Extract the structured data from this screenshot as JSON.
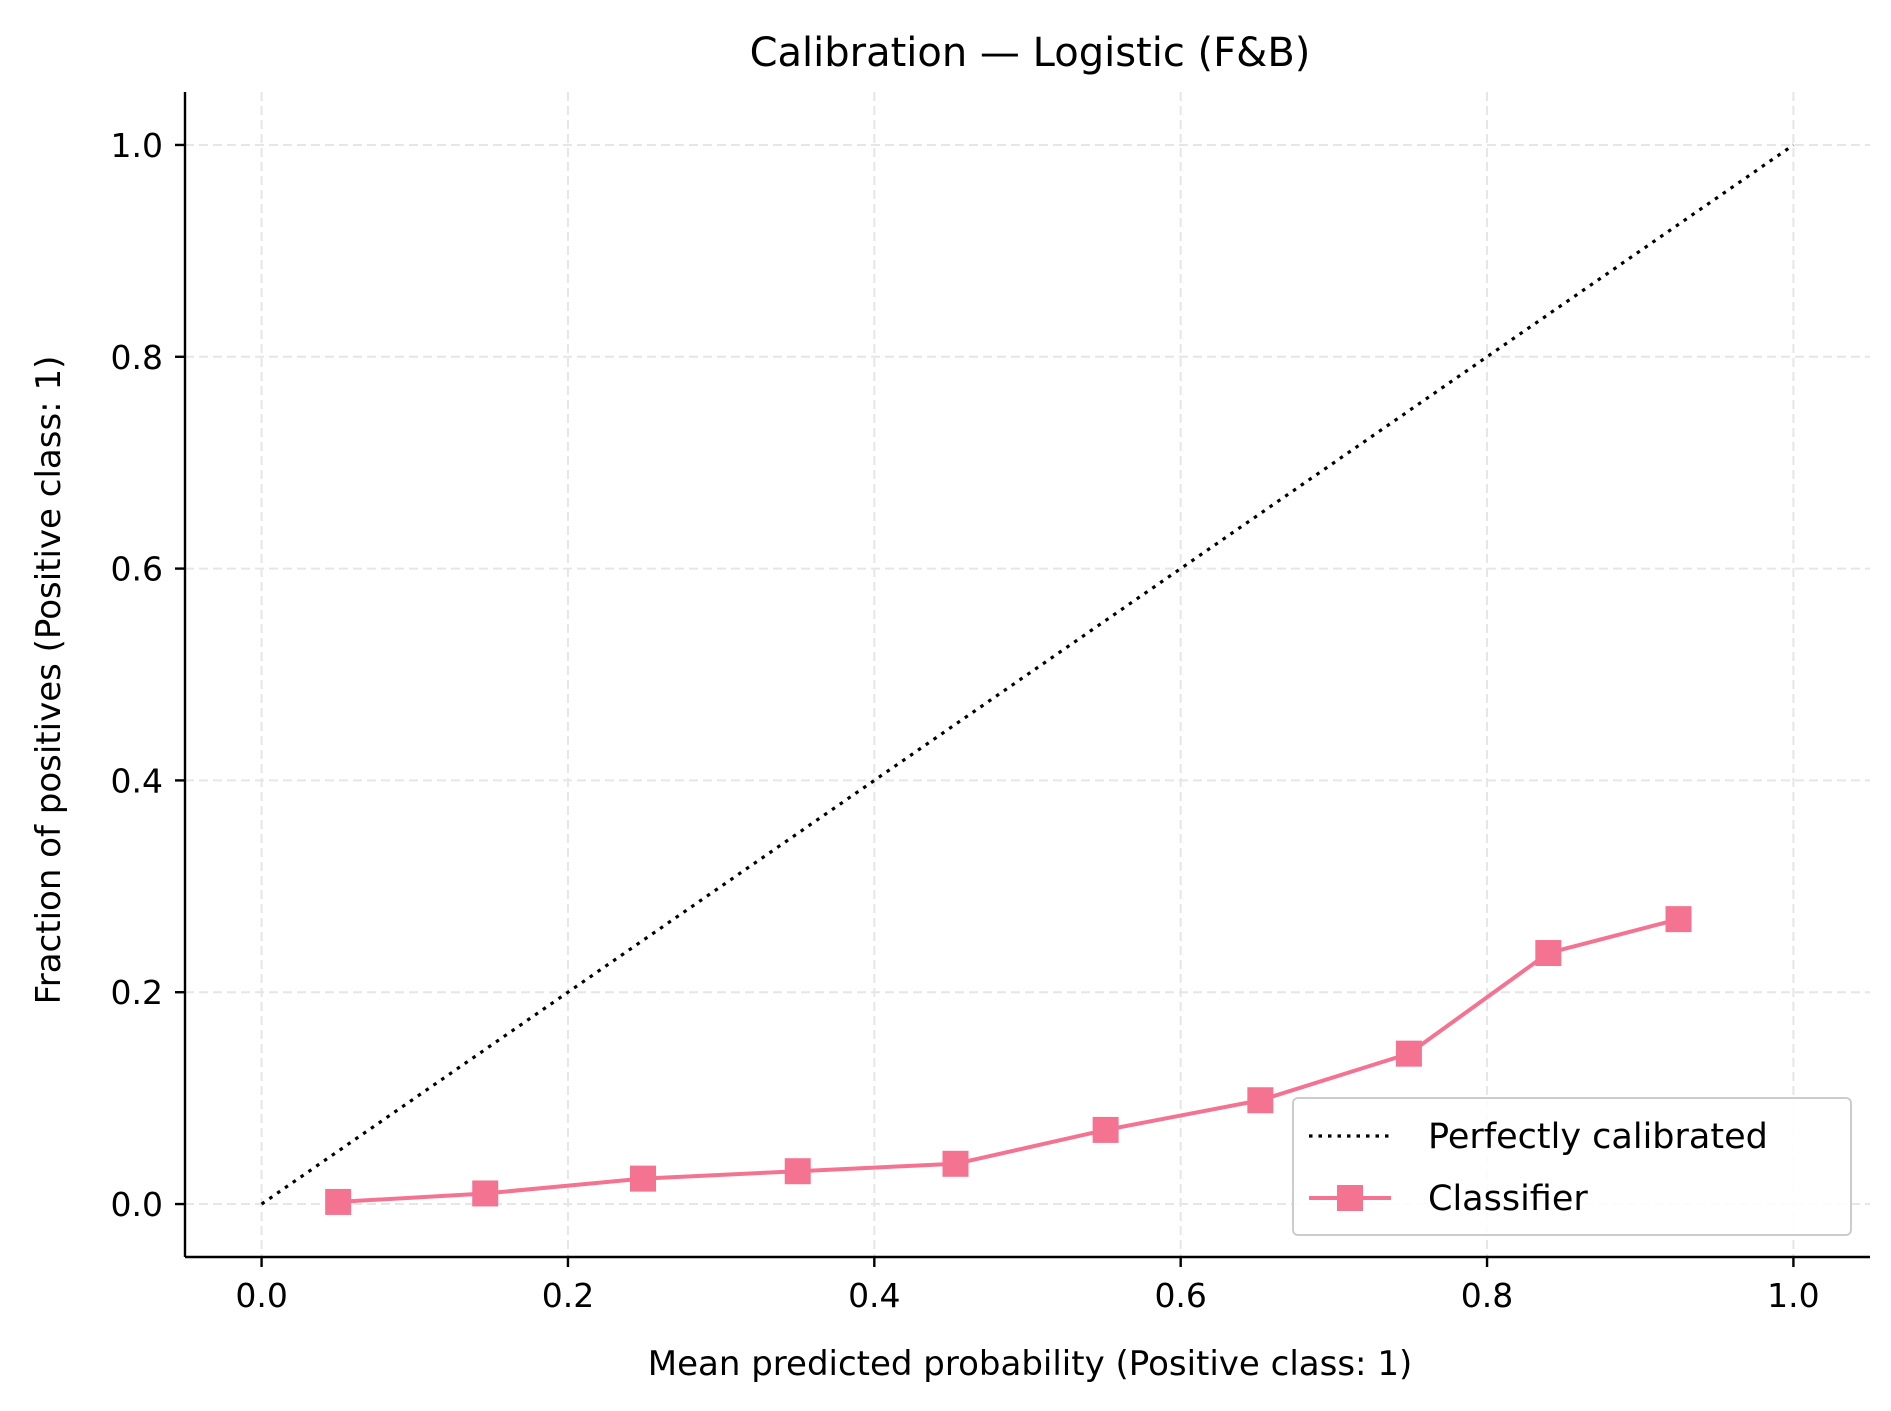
{
  "chart_data": {
    "type": "line",
    "title": "Calibration — Logistic (F&B)",
    "xlabel": "Mean predicted probability (Positive class: 1)",
    "ylabel": "Fraction of positives (Positive class: 1)",
    "xlim": [
      -0.05,
      1.05
    ],
    "ylim": [
      -0.05,
      1.05
    ],
    "xticks": [
      "0.0",
      "0.2",
      "0.4",
      "0.6",
      "0.8",
      "1.0"
    ],
    "yticks": [
      "0.0",
      "0.2",
      "0.4",
      "0.6",
      "0.8",
      "1.0"
    ],
    "grid": true,
    "legend_position": "lower-right",
    "series": [
      {
        "name": "Perfectly calibrated",
        "style": "dotted",
        "color": "#000000",
        "x": [
          0.0,
          1.0
        ],
        "y": [
          0.0,
          1.0
        ]
      },
      {
        "name": "Classifier",
        "style": "line-square-markers",
        "color": "#f37391",
        "x": [
          0.05,
          0.146,
          0.249,
          0.35,
          0.453,
          0.551,
          0.652,
          0.749,
          0.84,
          0.925
        ],
        "y": [
          0.002,
          0.01,
          0.024,
          0.031,
          0.038,
          0.07,
          0.098,
          0.142,
          0.237,
          0.269
        ]
      }
    ]
  }
}
